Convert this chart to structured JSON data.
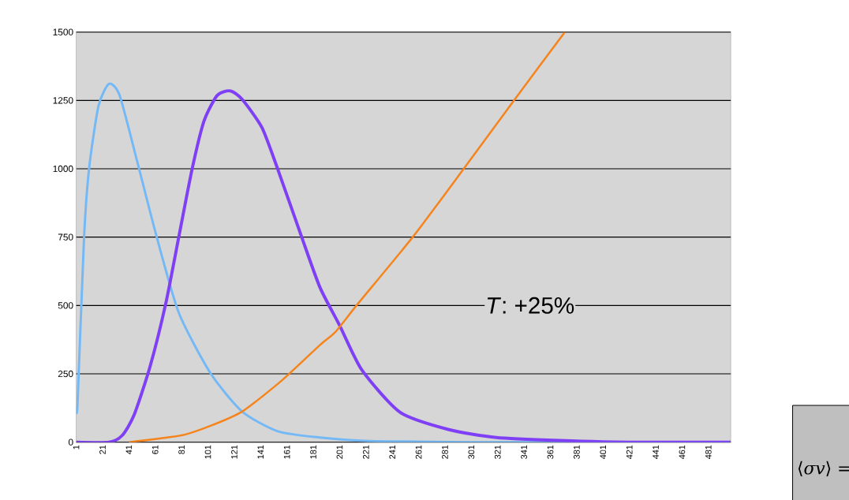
{
  "chart_data": {
    "type": "line",
    "xlim": [
      1,
      498
    ],
    "ylim": [
      0,
      1500
    ],
    "xticks": [
      1,
      21,
      41,
      61,
      81,
      101,
      121,
      141,
      161,
      181,
      201,
      221,
      241,
      261,
      281,
      301,
      321,
      341,
      361,
      381,
      401,
      421,
      441,
      461,
      481
    ],
    "yticks": [
      0,
      250,
      500,
      750,
      1000,
      1250,
      1500
    ],
    "grid": "y",
    "marker": "none",
    "line_style": "solid",
    "series": [
      {
        "color": "#74b9f5",
        "x": [
          1,
          2,
          7,
          11,
          18,
          26,
          34,
          47,
          62,
          79,
          103,
          127,
          154,
          186,
          220,
          260,
          300,
          400,
          498
        ],
        "values": [
          130,
          140,
          753,
          1010,
          1231,
          1311,
          1268,
          1033,
          753,
          472,
          252,
          112,
          40,
          17,
          5,
          2,
          0,
          0,
          0
        ]
      },
      {
        "color": "#7f40f5",
        "x": [
          1,
          26,
          36,
          45,
          57,
          69,
          79,
          89,
          98,
          108,
          118,
          127,
          142,
          154,
          172,
          186,
          201,
          218,
          247,
          284,
          320,
          368,
          420,
          498
        ],
        "values": [
          0,
          0,
          25,
          100,
          275,
          507,
          753,
          999,
          1174,
          1268,
          1285,
          1254,
          1151,
          999,
          753,
          567,
          427,
          263,
          109,
          46,
          17,
          6,
          0,
          0
        ]
      },
      {
        "color": "#f5841c",
        "x": [
          41,
          81,
          103,
          127,
          157,
          186,
          198,
          215,
          257,
          296,
          334,
          372
        ],
        "values": [
          0,
          25,
          60,
          112,
          225,
          355,
          404,
          507,
          753,
          1005,
          1254,
          1500
        ]
      }
    ],
    "annotations": [
      "*T*: +25%",
      "⟨*σv*⟩ ="
    ]
  }
}
